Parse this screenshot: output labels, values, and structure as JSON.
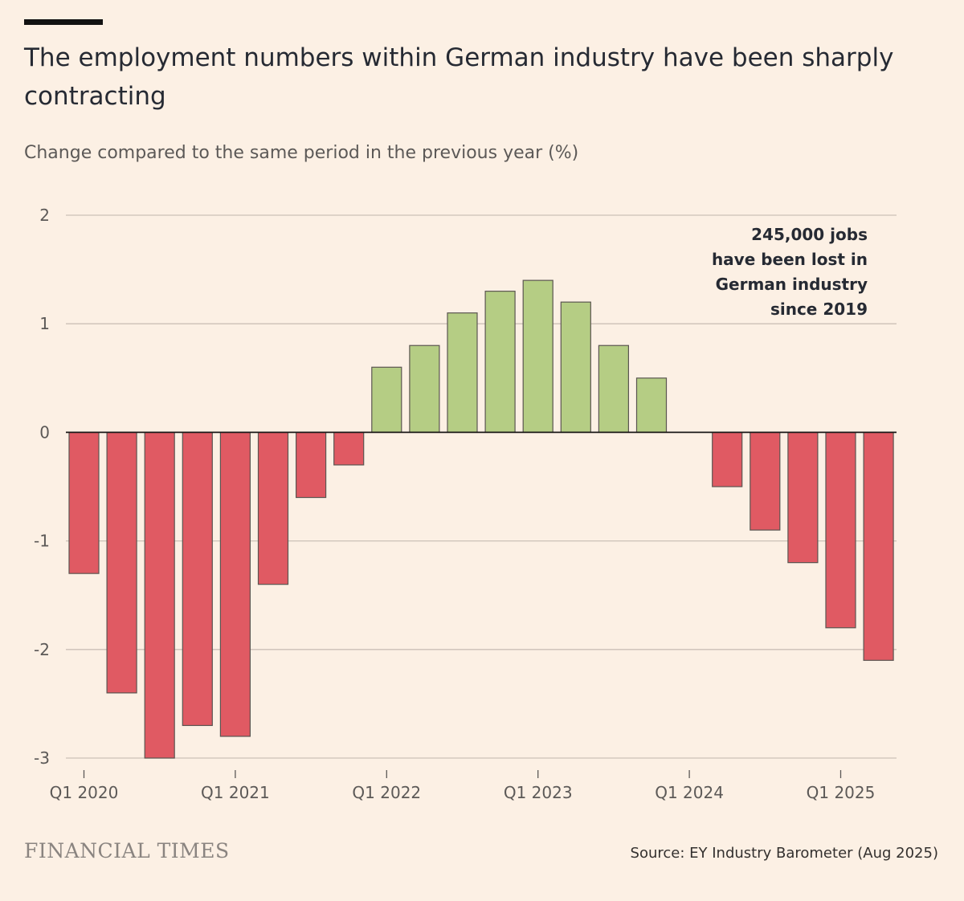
{
  "header": {
    "title": "The employment numbers within German industry have been sharply contracting",
    "subtitle": "Change compared to the same period in the previous year (%)"
  },
  "annotation": "245,000 jobs\nhave been lost in\nGerman industry\nsince 2019",
  "footer": {
    "brand": "FINANCIAL TIMES",
    "source": "Source: EY Industry Barometer (Aug 2025)"
  },
  "colors": {
    "negative": "#e05a63",
    "positive": "#b5cd84",
    "background": "#fcf0e4"
  },
  "chart_data": {
    "type": "bar",
    "categories": [
      "Q1 2020",
      "Q2 2020",
      "Q3 2020",
      "Q4 2020",
      "Q1 2021",
      "Q2 2021",
      "Q3 2021",
      "Q4 2021",
      "Q1 2022",
      "Q2 2022",
      "Q3 2022",
      "Q4 2022",
      "Q1 2023",
      "Q2 2023",
      "Q3 2023",
      "Q4 2023",
      "Q1 2024",
      "Q2 2024",
      "Q3 2024",
      "Q4 2024",
      "Q1 2025",
      "Q2 2025"
    ],
    "values": [
      -1.3,
      -2.4,
      -3.0,
      -2.7,
      -2.8,
      -1.4,
      -0.6,
      -0.3,
      0.6,
      0.8,
      1.1,
      1.3,
      1.4,
      1.2,
      0.8,
      0.5,
      0.0,
      -0.5,
      -0.9,
      -1.2,
      -1.8,
      -2.1
    ],
    "xtick_labels": [
      "Q1 2020",
      "Q1 2021",
      "Q1 2022",
      "Q1 2023",
      "Q1 2024",
      "Q1 2025"
    ],
    "yticks": [
      2,
      1,
      0,
      -1,
      -2,
      -3
    ],
    "ytick_labels": [
      "2",
      "1",
      "0",
      "-1",
      "-2",
      "-3"
    ],
    "ylim": [
      -3,
      2
    ],
    "grid": true
  }
}
